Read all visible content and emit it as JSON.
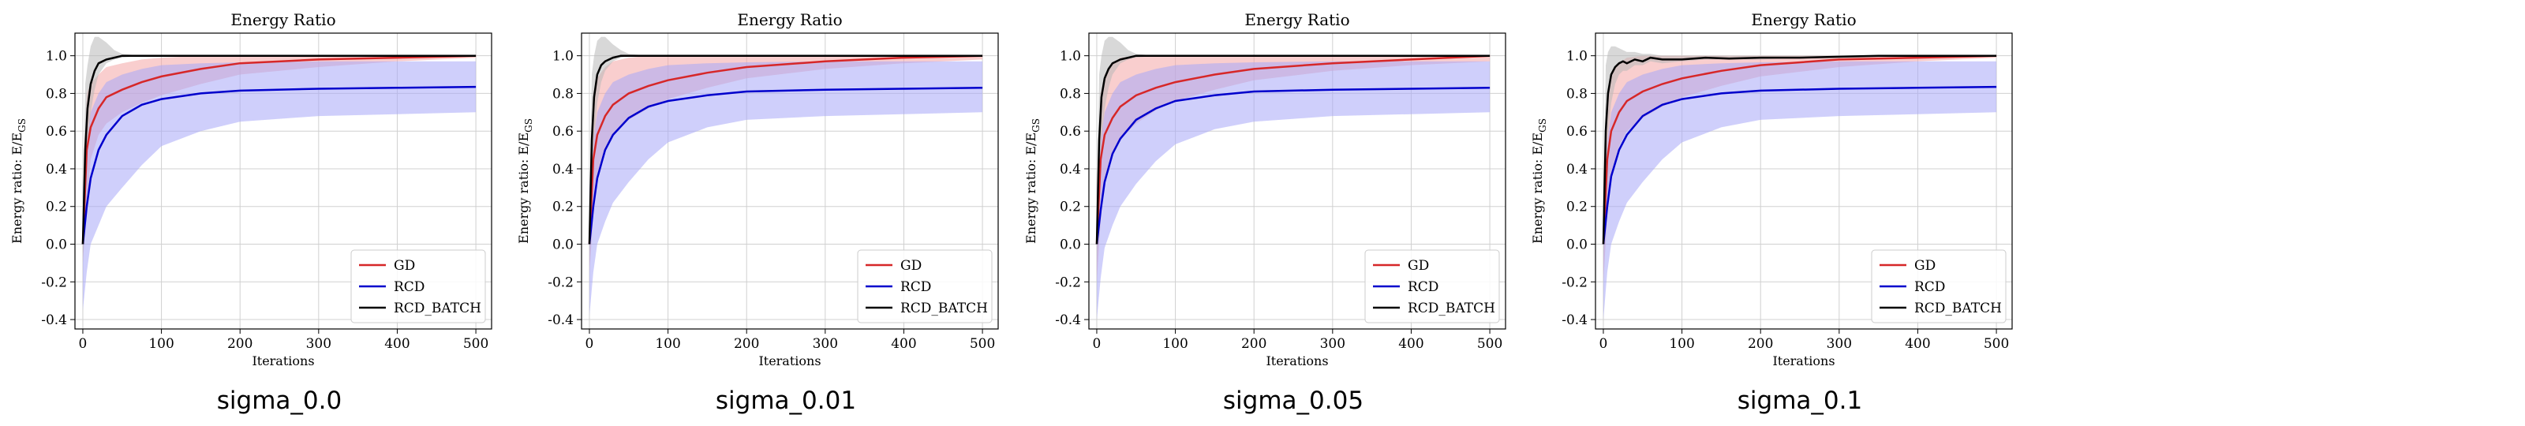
{
  "chart_data": [
    {
      "type": "line",
      "title": "Energy Ratio",
      "xlabel": "Iterations",
      "ylabel": "Energy ratio: E/E",
      "ylabel_sub": "GS",
      "caption": "sigma_0.0",
      "xlim": [
        -10,
        520
      ],
      "ylim": [
        -0.45,
        1.12
      ],
      "xticks": [
        "0",
        "100",
        "200",
        "300",
        "400",
        "500"
      ],
      "yticks": [
        "-0.4",
        "-0.2",
        "0.0",
        "0.2",
        "0.4",
        "0.6",
        "0.8",
        "1.0"
      ],
      "grid": true,
      "legend_position": "lower-right",
      "series": [
        {
          "name": "GD",
          "color": "#d62728",
          "band_color": "#f4a6a6",
          "x": [
            0,
            5,
            10,
            20,
            30,
            50,
            75,
            100,
            150,
            200,
            300,
            400,
            500
          ],
          "y": [
            0.0,
            0.5,
            0.62,
            0.72,
            0.78,
            0.82,
            0.86,
            0.89,
            0.93,
            0.96,
            0.98,
            0.99,
            1.0
          ],
          "lower": [
            -0.1,
            0.2,
            0.45,
            0.58,
            0.64,
            0.7,
            0.75,
            0.79,
            0.85,
            0.9,
            0.94,
            0.97,
            0.99
          ],
          "upper": [
            0.2,
            0.8,
            0.85,
            0.9,
            0.94,
            0.96,
            0.98,
            0.99,
            1.0,
            1.0,
            1.0,
            1.0,
            1.0
          ]
        },
        {
          "name": "RCD",
          "color": "#0000cc",
          "band_color": "#a8a8f8",
          "x": [
            0,
            5,
            10,
            20,
            30,
            50,
            75,
            100,
            150,
            200,
            300,
            400,
            500
          ],
          "y": [
            0.0,
            0.2,
            0.35,
            0.5,
            0.58,
            0.68,
            0.74,
            0.77,
            0.8,
            0.815,
            0.825,
            0.83,
            0.835
          ],
          "lower": [
            -0.35,
            -0.15,
            0.0,
            0.1,
            0.2,
            0.3,
            0.42,
            0.52,
            0.6,
            0.65,
            0.68,
            0.69,
            0.7
          ],
          "upper": [
            0.3,
            0.55,
            0.7,
            0.8,
            0.86,
            0.9,
            0.93,
            0.95,
            0.96,
            0.965,
            0.97,
            0.97,
            0.97
          ]
        },
        {
          "name": "RCD_BATCH",
          "color": "#000000",
          "band_color": "#b8b8b8",
          "x": [
            0,
            3,
            6,
            10,
            15,
            20,
            30,
            40,
            50,
            75,
            100,
            500
          ],
          "y": [
            0.0,
            0.5,
            0.72,
            0.85,
            0.92,
            0.96,
            0.98,
            0.99,
            1.0,
            1.0,
            1.0,
            1.0
          ],
          "lower": [
            -0.1,
            0.2,
            0.5,
            0.7,
            0.82,
            0.9,
            0.96,
            0.98,
            0.99,
            1.0,
            1.0,
            1.0
          ],
          "upper": [
            0.2,
            0.85,
            0.95,
            1.05,
            1.1,
            1.1,
            1.07,
            1.03,
            1.01,
            1.0,
            1.0,
            1.0
          ]
        }
      ]
    },
    {
      "type": "line",
      "title": "Energy Ratio",
      "xlabel": "Iterations",
      "ylabel": "Energy ratio: E/E",
      "ylabel_sub": "GS",
      "caption": "sigma_0.01",
      "xlim": [
        -10,
        520
      ],
      "ylim": [
        -0.45,
        1.12
      ],
      "xticks": [
        "0",
        "100",
        "200",
        "300",
        "400",
        "500"
      ],
      "yticks": [
        "-0.4",
        "-0.2",
        "0.0",
        "0.2",
        "0.4",
        "0.6",
        "0.8",
        "1.0"
      ],
      "grid": true,
      "legend_position": "lower-right",
      "series": [
        {
          "name": "GD",
          "color": "#d62728",
          "band_color": "#f4a6a6",
          "x": [
            0,
            5,
            10,
            20,
            30,
            50,
            75,
            100,
            150,
            200,
            300,
            400,
            500
          ],
          "y": [
            0.0,
            0.45,
            0.58,
            0.68,
            0.74,
            0.8,
            0.84,
            0.87,
            0.91,
            0.94,
            0.97,
            0.99,
            1.0
          ],
          "lower": [
            -0.15,
            0.15,
            0.35,
            0.5,
            0.58,
            0.66,
            0.72,
            0.77,
            0.83,
            0.88,
            0.93,
            0.96,
            0.98
          ],
          "upper": [
            0.25,
            0.8,
            0.88,
            0.94,
            0.97,
            0.99,
            1.0,
            1.0,
            1.0,
            1.0,
            1.0,
            1.0,
            1.0
          ]
        },
        {
          "name": "RCD",
          "color": "#0000cc",
          "band_color": "#a8a8f8",
          "x": [
            0,
            5,
            10,
            20,
            30,
            50,
            75,
            100,
            150,
            200,
            300,
            400,
            500
          ],
          "y": [
            0.0,
            0.2,
            0.35,
            0.5,
            0.58,
            0.67,
            0.73,
            0.76,
            0.79,
            0.81,
            0.82,
            0.825,
            0.83
          ],
          "lower": [
            -0.38,
            -0.15,
            0.0,
            0.12,
            0.22,
            0.33,
            0.45,
            0.54,
            0.62,
            0.66,
            0.68,
            0.69,
            0.7
          ],
          "upper": [
            0.3,
            0.55,
            0.7,
            0.8,
            0.86,
            0.9,
            0.93,
            0.95,
            0.96,
            0.965,
            0.97,
            0.97,
            0.97
          ]
        },
        {
          "name": "RCD_BATCH",
          "color": "#000000",
          "band_color": "#b8b8b8",
          "x": [
            0,
            3,
            6,
            10,
            15,
            20,
            30,
            40,
            50,
            75,
            100,
            500
          ],
          "y": [
            0.0,
            0.55,
            0.78,
            0.9,
            0.95,
            0.97,
            0.99,
            1.0,
            1.0,
            1.0,
            1.0,
            1.0
          ],
          "lower": [
            -0.1,
            0.25,
            0.55,
            0.75,
            0.86,
            0.92,
            0.97,
            0.99,
            1.0,
            1.0,
            1.0,
            1.0
          ],
          "upper": [
            0.2,
            0.9,
            1.0,
            1.08,
            1.1,
            1.1,
            1.06,
            1.03,
            1.01,
            1.0,
            1.0,
            1.0
          ]
        }
      ]
    },
    {
      "type": "line",
      "title": "Energy Ratio",
      "xlabel": "Iterations",
      "ylabel": "Energy ratio: E/E",
      "ylabel_sub": "GS",
      "caption": "sigma_0.05",
      "xlim": [
        -10,
        520
      ],
      "ylim": [
        -0.45,
        1.12
      ],
      "xticks": [
        "0",
        "100",
        "200",
        "300",
        "400",
        "500"
      ],
      "yticks": [
        "-0.4",
        "-0.2",
        "0.0",
        "0.2",
        "0.4",
        "0.6",
        "0.8",
        "1.0"
      ],
      "grid": true,
      "legend_position": "lower-right",
      "series": [
        {
          "name": "GD",
          "color": "#d62728",
          "band_color": "#f4a6a6",
          "x": [
            0,
            5,
            10,
            20,
            30,
            50,
            75,
            100,
            150,
            200,
            300,
            400,
            500
          ],
          "y": [
            0.0,
            0.45,
            0.58,
            0.67,
            0.73,
            0.79,
            0.83,
            0.86,
            0.9,
            0.93,
            0.96,
            0.98,
            1.0
          ],
          "lower": [
            -0.2,
            0.12,
            0.32,
            0.48,
            0.56,
            0.64,
            0.71,
            0.76,
            0.82,
            0.87,
            0.92,
            0.95,
            0.97
          ],
          "upper": [
            0.3,
            0.8,
            0.9,
            0.96,
            0.99,
            1.0,
            1.0,
            1.0,
            1.0,
            1.0,
            1.0,
            1.0,
            1.0
          ]
        },
        {
          "name": "RCD",
          "color": "#0000cc",
          "band_color": "#a8a8f8",
          "x": [
            0,
            5,
            10,
            20,
            30,
            50,
            75,
            100,
            150,
            200,
            300,
            400,
            500
          ],
          "y": [
            0.0,
            0.18,
            0.33,
            0.48,
            0.56,
            0.66,
            0.72,
            0.76,
            0.79,
            0.81,
            0.82,
            0.825,
            0.83
          ],
          "lower": [
            -0.4,
            -0.18,
            -0.02,
            0.1,
            0.2,
            0.32,
            0.44,
            0.53,
            0.61,
            0.65,
            0.68,
            0.69,
            0.7
          ],
          "upper": [
            0.3,
            0.55,
            0.7,
            0.8,
            0.86,
            0.9,
            0.93,
            0.95,
            0.96,
            0.965,
            0.97,
            0.97,
            0.97
          ]
        },
        {
          "name": "RCD_BATCH",
          "color": "#000000",
          "band_color": "#b8b8b8",
          "x": [
            0,
            3,
            6,
            10,
            15,
            20,
            30,
            40,
            50,
            75,
            100,
            500
          ],
          "y": [
            0.0,
            0.55,
            0.78,
            0.88,
            0.93,
            0.96,
            0.98,
            0.99,
            1.0,
            1.0,
            1.0,
            1.0
          ],
          "lower": [
            -0.1,
            0.25,
            0.55,
            0.72,
            0.83,
            0.9,
            0.96,
            0.98,
            0.99,
            1.0,
            1.0,
            1.0
          ],
          "upper": [
            0.2,
            0.9,
            1.0,
            1.08,
            1.1,
            1.1,
            1.07,
            1.03,
            1.01,
            1.0,
            1.0,
            1.0
          ]
        }
      ]
    },
    {
      "type": "line",
      "title": "Energy Ratio",
      "xlabel": "Iterations",
      "ylabel": "Energy ratio: E/E",
      "ylabel_sub": "GS",
      "caption": "sigma_0.1",
      "xlim": [
        -10,
        520
      ],
      "ylim": [
        -0.45,
        1.12
      ],
      "xticks": [
        "0",
        "100",
        "200",
        "300",
        "400",
        "500"
      ],
      "yticks": [
        "-0.4",
        "-0.2",
        "0.0",
        "0.2",
        "0.4",
        "0.6",
        "0.8",
        "1.0"
      ],
      "grid": true,
      "legend_position": "lower-right",
      "series": [
        {
          "name": "GD",
          "color": "#d62728",
          "band_color": "#f4a6a6",
          "x": [
            0,
            5,
            10,
            20,
            30,
            50,
            75,
            100,
            150,
            200,
            300,
            400,
            500
          ],
          "y": [
            0.0,
            0.45,
            0.6,
            0.7,
            0.76,
            0.81,
            0.85,
            0.88,
            0.92,
            0.95,
            0.98,
            0.99,
            1.0
          ],
          "lower": [
            -0.2,
            0.15,
            0.38,
            0.52,
            0.6,
            0.67,
            0.73,
            0.78,
            0.84,
            0.89,
            0.94,
            0.97,
            0.99
          ],
          "upper": [
            0.3,
            0.8,
            0.9,
            0.96,
            0.99,
            1.0,
            1.0,
            1.0,
            1.0,
            1.0,
            1.0,
            1.0,
            1.0
          ]
        },
        {
          "name": "RCD",
          "color": "#0000cc",
          "band_color": "#a8a8f8",
          "x": [
            0,
            5,
            10,
            20,
            30,
            50,
            75,
            100,
            150,
            200,
            300,
            400,
            500
          ],
          "y": [
            0.0,
            0.2,
            0.36,
            0.5,
            0.58,
            0.68,
            0.74,
            0.77,
            0.8,
            0.815,
            0.825,
            0.83,
            0.835
          ],
          "lower": [
            -0.4,
            -0.15,
            0.0,
            0.12,
            0.22,
            0.33,
            0.45,
            0.54,
            0.62,
            0.66,
            0.68,
            0.69,
            0.7
          ],
          "upper": [
            0.3,
            0.55,
            0.7,
            0.8,
            0.86,
            0.9,
            0.93,
            0.95,
            0.96,
            0.965,
            0.97,
            0.97,
            0.97
          ]
        },
        {
          "name": "RCD_BATCH",
          "color": "#000000",
          "band_color": "#b8b8b8",
          "x": [
            0,
            3,
            6,
            10,
            15,
            20,
            25,
            30,
            40,
            50,
            60,
            75,
            100,
            130,
            160,
            200,
            250,
            300,
            350,
            400,
            450,
            500
          ],
          "y": [
            0.0,
            0.6,
            0.8,
            0.9,
            0.94,
            0.96,
            0.97,
            0.96,
            0.98,
            0.97,
            0.99,
            0.98,
            0.98,
            0.99,
            0.985,
            0.99,
            0.99,
            0.995,
            1.0,
            1.0,
            1.0,
            1.0
          ],
          "lower": [
            -0.1,
            0.3,
            0.58,
            0.75,
            0.85,
            0.9,
            0.92,
            0.92,
            0.95,
            0.95,
            0.97,
            0.96,
            0.97,
            0.98,
            0.98,
            0.98,
            0.99,
            0.99,
            1.0,
            1.0,
            1.0,
            1.0
          ],
          "upper": [
            0.2,
            0.95,
            1.02,
            1.05,
            1.05,
            1.04,
            1.03,
            1.02,
            1.02,
            1.01,
            1.01,
            1.0,
            1.0,
            1.0,
            1.0,
            1.0,
            1.0,
            1.0,
            1.0,
            1.0,
            1.0,
            1.0
          ]
        }
      ]
    }
  ]
}
